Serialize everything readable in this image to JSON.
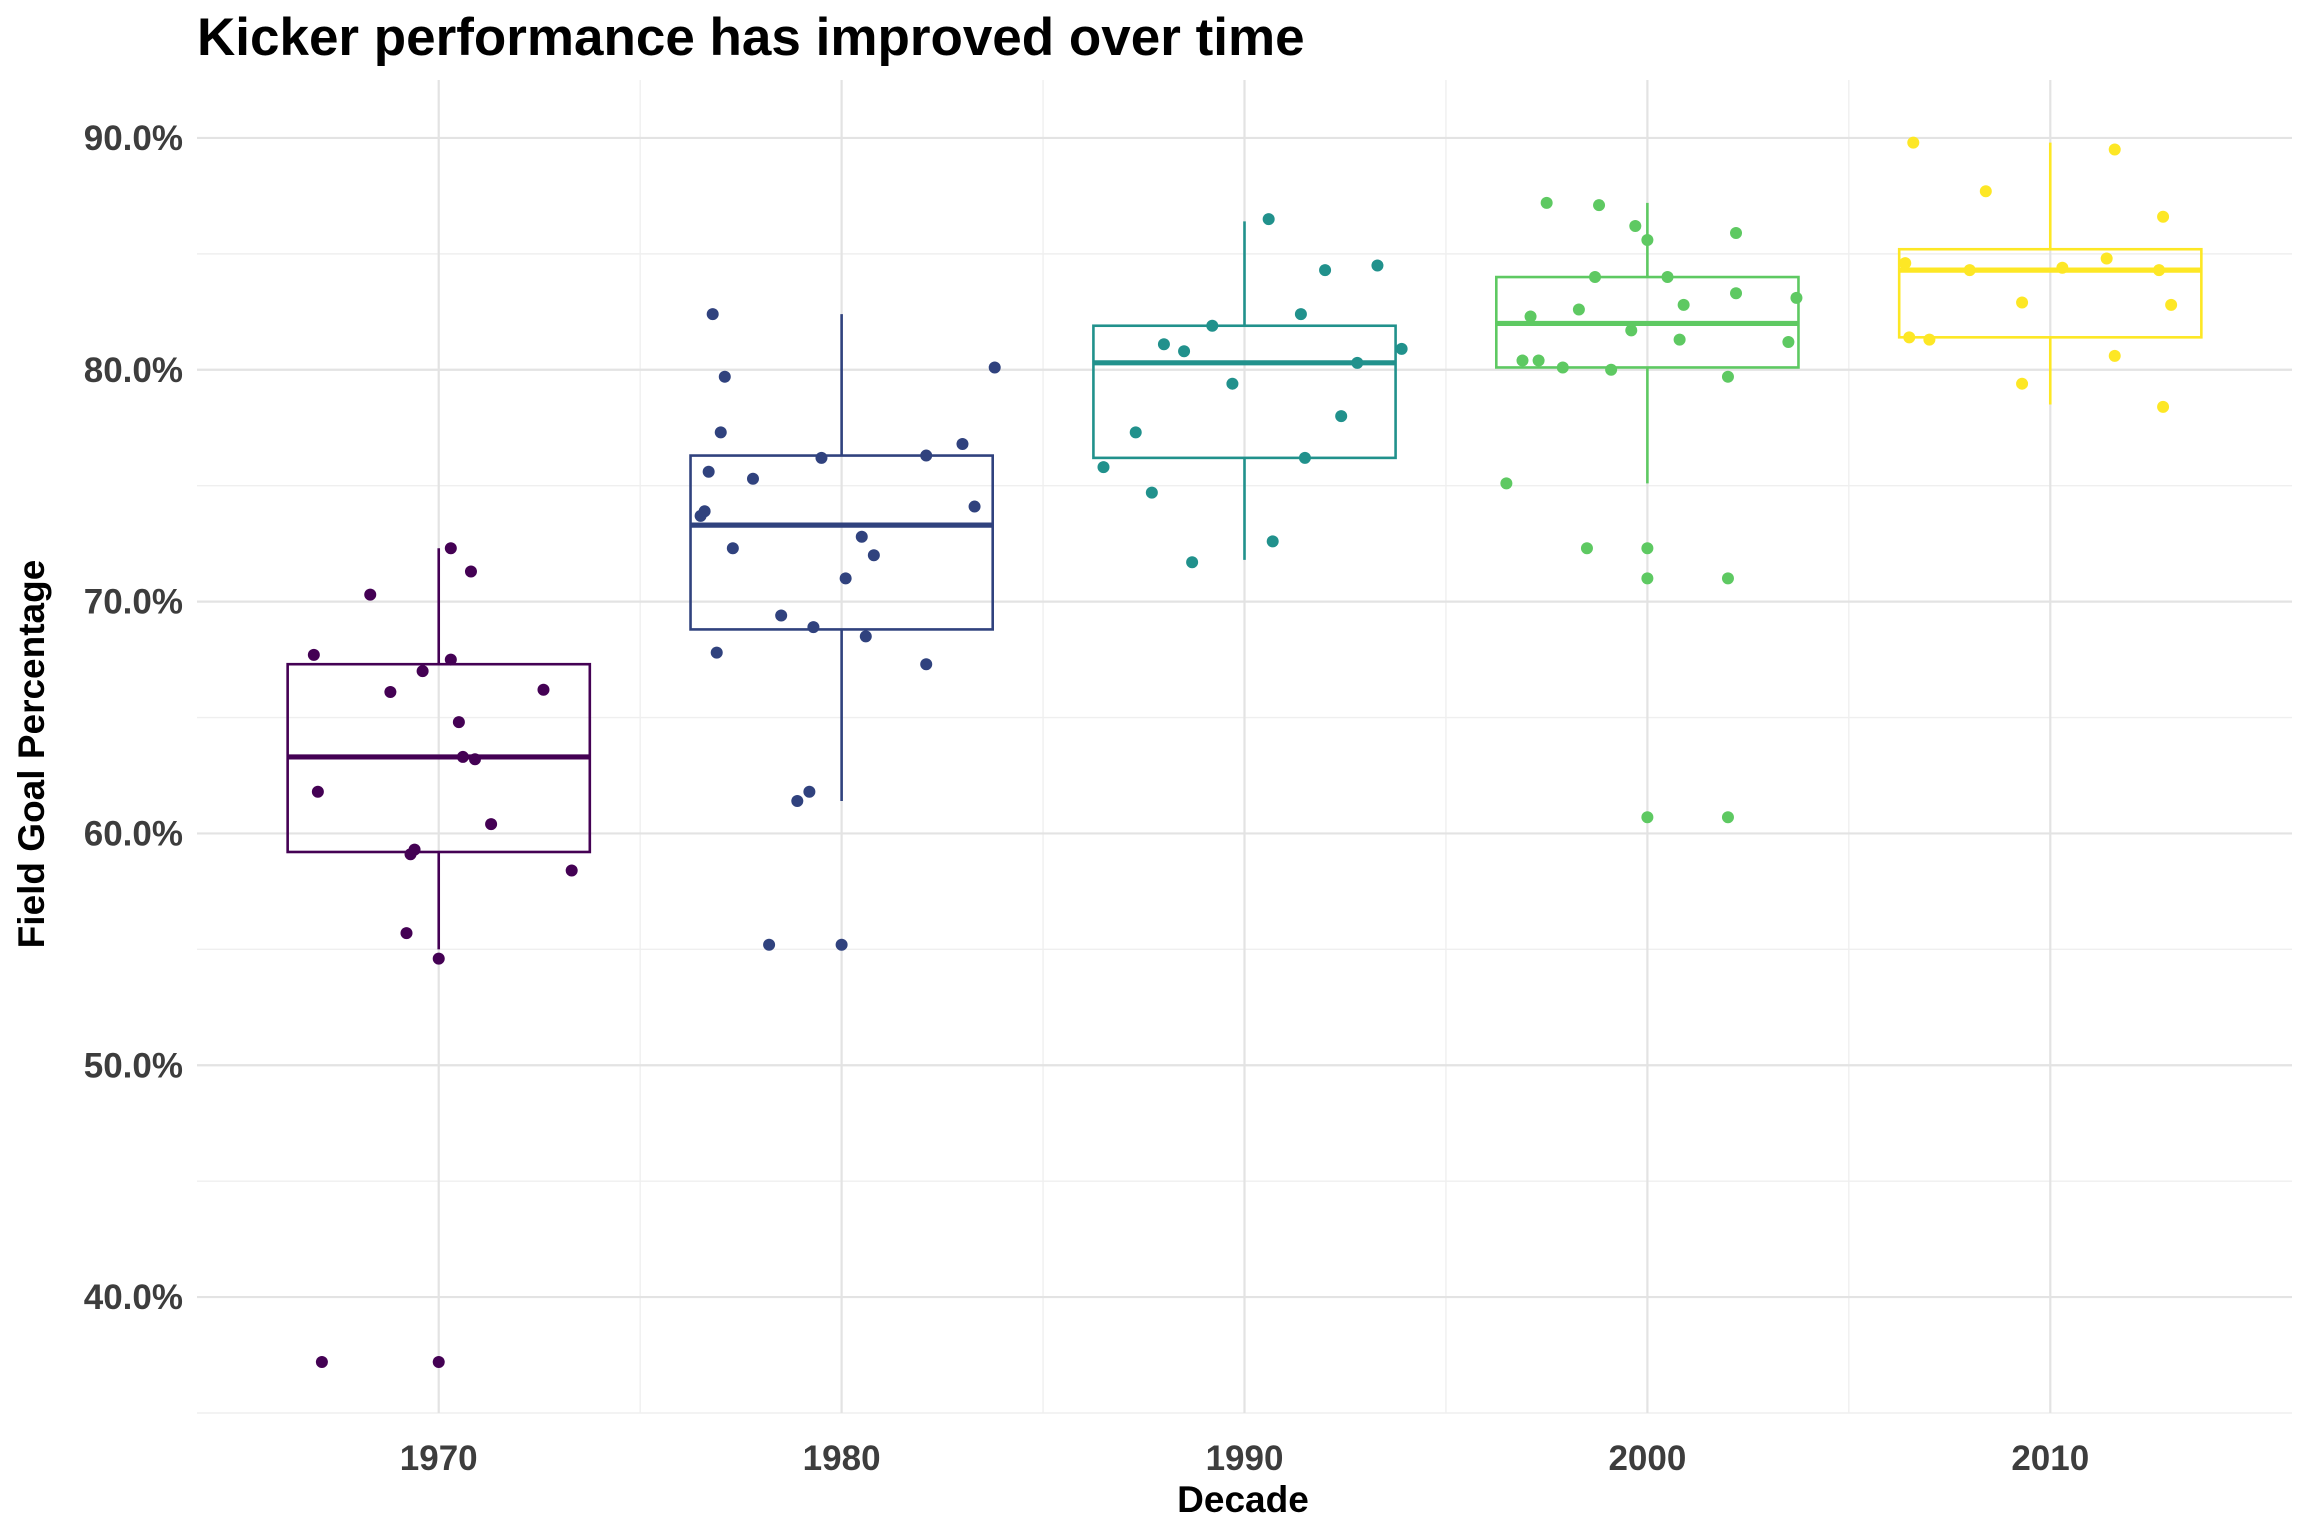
{
  "chart_data": {
    "type": "boxplot",
    "title": "Kicker performance has improved over time",
    "xlabel": "Decade",
    "ylabel": "Field Goal Percentage",
    "ylim": [
      0.35,
      0.925
    ],
    "y_ticks": [
      {
        "value": 0.4,
        "label": "40.0%"
      },
      {
        "value": 0.5,
        "label": "50.0%"
      },
      {
        "value": 0.6,
        "label": "60.0%"
      },
      {
        "value": 0.7,
        "label": "70.0%"
      },
      {
        "value": 0.8,
        "label": "80.0%"
      },
      {
        "value": 0.9,
        "label": "90.0%"
      }
    ],
    "x_ticks": [
      1970,
      1980,
      1990,
      2000,
      2010
    ],
    "x_tick_labels": [
      "1970",
      "1980",
      "1990",
      "2000",
      "2010"
    ],
    "xlim": [
      1964,
      2016
    ],
    "grid": true,
    "series": [
      {
        "decade": "1970",
        "color": "#440154",
        "box": {
          "lower": 0.55,
          "q1": 0.592,
          "median": 0.633,
          "q3": 0.673,
          "upper": 0.723
        },
        "points": [
          {
            "x": 1966.9,
            "y": 0.677
          },
          {
            "x": 1967.0,
            "y": 0.618
          },
          {
            "x": 1968.3,
            "y": 0.703
          },
          {
            "x": 1968.8,
            "y": 0.661
          },
          {
            "x": 1969.2,
            "y": 0.557
          },
          {
            "x": 1969.3,
            "y": 0.591
          },
          {
            "x": 1969.4,
            "y": 0.593
          },
          {
            "x": 1969.6,
            "y": 0.67
          },
          {
            "x": 1970.0,
            "y": 0.546
          },
          {
            "x": 1970.3,
            "y": 0.723
          },
          {
            "x": 1970.3,
            "y": 0.675
          },
          {
            "x": 1970.5,
            "y": 0.648
          },
          {
            "x": 1970.6,
            "y": 0.633
          },
          {
            "x": 1970.8,
            "y": 0.713
          },
          {
            "x": 1970.9,
            "y": 0.632
          },
          {
            "x": 1971.3,
            "y": 0.604
          },
          {
            "x": 1972.6,
            "y": 0.662
          },
          {
            "x": 1973.3,
            "y": 0.584
          },
          {
            "x": 1967.1,
            "y": 0.372
          },
          {
            "x": 1970.0,
            "y": 0.372
          }
        ]
      },
      {
        "decade": "1980",
        "color": "#30427e",
        "box": {
          "lower": 0.614,
          "q1": 0.688,
          "median": 0.733,
          "q3": 0.763,
          "upper": 0.824
        },
        "points": [
          {
            "x": 1976.5,
            "y": 0.737
          },
          {
            "x": 1976.6,
            "y": 0.739
          },
          {
            "x": 1976.7,
            "y": 0.756
          },
          {
            "x": 1976.8,
            "y": 0.824
          },
          {
            "x": 1976.9,
            "y": 0.678
          },
          {
            "x": 1977.0,
            "y": 0.773
          },
          {
            "x": 1977.1,
            "y": 0.797
          },
          {
            "x": 1977.3,
            "y": 0.723
          },
          {
            "x": 1977.8,
            "y": 0.753
          },
          {
            "x": 1978.2,
            "y": 0.552
          },
          {
            "x": 1978.5,
            "y": 0.694
          },
          {
            "x": 1978.9,
            "y": 0.614
          },
          {
            "x": 1979.2,
            "y": 0.618
          },
          {
            "x": 1979.3,
            "y": 0.689
          },
          {
            "x": 1979.5,
            "y": 0.762
          },
          {
            "x": 1980.0,
            "y": 0.552
          },
          {
            "x": 1980.1,
            "y": 0.71
          },
          {
            "x": 1980.5,
            "y": 0.728
          },
          {
            "x": 1980.6,
            "y": 0.685
          },
          {
            "x": 1980.8,
            "y": 0.72
          },
          {
            "x": 1982.1,
            "y": 0.763
          },
          {
            "x": 1982.1,
            "y": 0.673
          },
          {
            "x": 1983.0,
            "y": 0.768
          },
          {
            "x": 1983.3,
            "y": 0.741
          },
          {
            "x": 1983.8,
            "y": 0.801
          }
        ]
      },
      {
        "decade": "1990",
        "color": "#21918c",
        "box": {
          "lower": 0.718,
          "q1": 0.762,
          "median": 0.803,
          "q3": 0.819,
          "upper": 0.864
        },
        "points": [
          {
            "x": 1986.5,
            "y": 0.758
          },
          {
            "x": 1987.3,
            "y": 0.773
          },
          {
            "x": 1987.7,
            "y": 0.747
          },
          {
            "x": 1988.0,
            "y": 0.811
          },
          {
            "x": 1988.5,
            "y": 0.808
          },
          {
            "x": 1988.7,
            "y": 0.717
          },
          {
            "x": 1989.2,
            "y": 0.819
          },
          {
            "x": 1989.7,
            "y": 0.794
          },
          {
            "x": 1990.6,
            "y": 0.865
          },
          {
            "x": 1990.7,
            "y": 0.726
          },
          {
            "x": 1991.4,
            "y": 0.824
          },
          {
            "x": 1991.5,
            "y": 0.762
          },
          {
            "x": 1992.0,
            "y": 0.843
          },
          {
            "x": 1992.4,
            "y": 0.78
          },
          {
            "x": 1992.8,
            "y": 0.803
          },
          {
            "x": 1993.3,
            "y": 0.845
          },
          {
            "x": 1993.9,
            "y": 0.809
          }
        ]
      },
      {
        "decade": "2000",
        "color": "#5ec962",
        "box": {
          "lower": 0.751,
          "q1": 0.801,
          "median": 0.82,
          "q3": 0.84,
          "upper": 0.872
        },
        "points": [
          {
            "x": 1996.5,
            "y": 0.751
          },
          {
            "x": 1996.9,
            "y": 0.804
          },
          {
            "x": 1997.1,
            "y": 0.823
          },
          {
            "x": 1997.3,
            "y": 0.804
          },
          {
            "x": 1997.5,
            "y": 0.872
          },
          {
            "x": 1997.9,
            "y": 0.801
          },
          {
            "x": 1998.3,
            "y": 0.826
          },
          {
            "x": 1998.5,
            "y": 0.723
          },
          {
            "x": 1998.7,
            "y": 0.84
          },
          {
            "x": 1998.8,
            "y": 0.871
          },
          {
            "x": 1999.1,
            "y": 0.8
          },
          {
            "x": 1999.6,
            "y": 0.817
          },
          {
            "x": 1999.7,
            "y": 0.862
          },
          {
            "x": 2000.0,
            "y": 0.71
          },
          {
            "x": 2000.0,
            "y": 0.723
          },
          {
            "x": 2000.0,
            "y": 0.856
          },
          {
            "x": 2000.0,
            "y": 0.607
          },
          {
            "x": 2000.5,
            "y": 0.84
          },
          {
            "x": 2000.8,
            "y": 0.813
          },
          {
            "x": 2000.9,
            "y": 0.828
          },
          {
            "x": 2002.0,
            "y": 0.71
          },
          {
            "x": 2002.0,
            "y": 0.607
          },
          {
            "x": 2002.0,
            "y": 0.797
          },
          {
            "x": 2002.2,
            "y": 0.833
          },
          {
            "x": 2002.2,
            "y": 0.859
          },
          {
            "x": 2003.5,
            "y": 0.812
          },
          {
            "x": 2003.7,
            "y": 0.831
          }
        ]
      },
      {
        "decade": "2010",
        "color": "#fde725",
        "box": {
          "lower": 0.785,
          "q1": 0.814,
          "median": 0.843,
          "q3": 0.852,
          "upper": 0.898
        },
        "points": [
          {
            "x": 2006.4,
            "y": 0.846
          },
          {
            "x": 2006.5,
            "y": 0.814
          },
          {
            "x": 2006.6,
            "y": 0.898
          },
          {
            "x": 2007.0,
            "y": 0.813
          },
          {
            "x": 2008.0,
            "y": 0.843
          },
          {
            "x": 2008.4,
            "y": 0.877
          },
          {
            "x": 2009.3,
            "y": 0.794
          },
          {
            "x": 2009.3,
            "y": 0.829
          },
          {
            "x": 2010.3,
            "y": 0.844
          },
          {
            "x": 2011.4,
            "y": 0.848
          },
          {
            "x": 2011.6,
            "y": 0.806
          },
          {
            "x": 2011.6,
            "y": 0.895
          },
          {
            "x": 2012.7,
            "y": 0.843
          },
          {
            "x": 2012.8,
            "y": 0.866
          },
          {
            "x": 2012.8,
            "y": 0.784
          },
          {
            "x": 2013.0,
            "y": 0.828
          }
        ]
      }
    ]
  }
}
